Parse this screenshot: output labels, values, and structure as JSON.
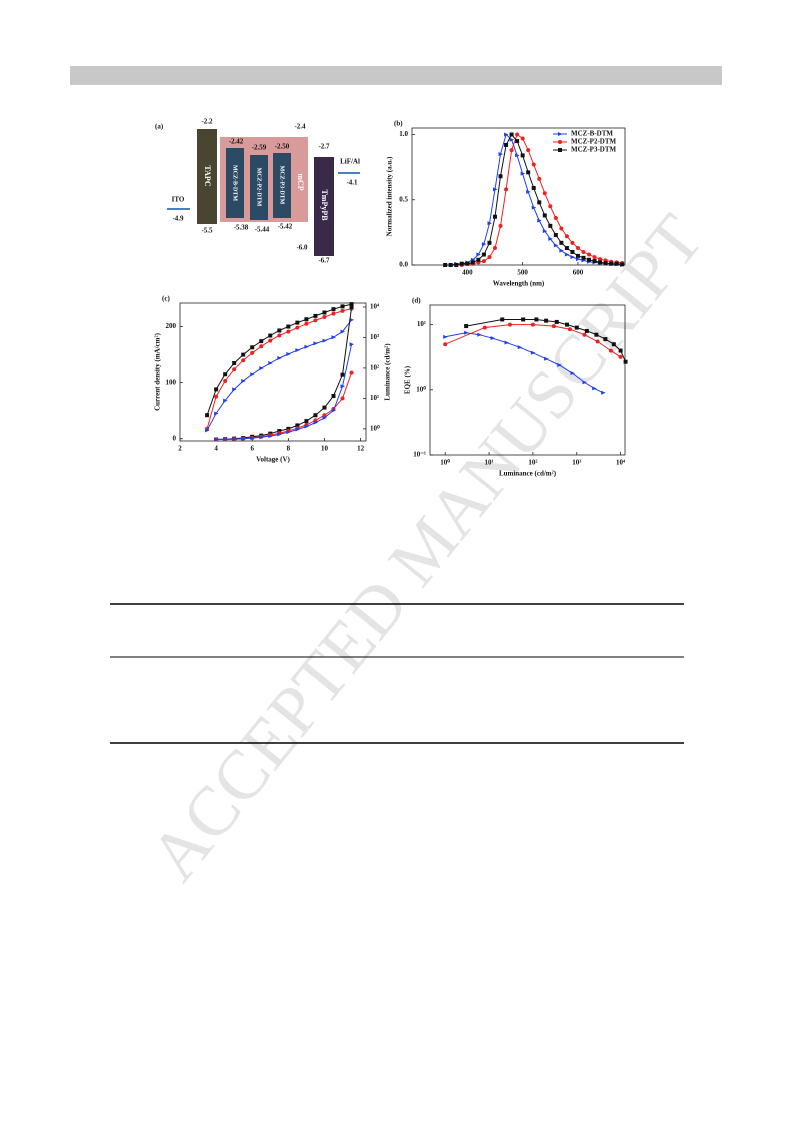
{
  "watermark": "ACCEPTED MANUSCRIPT",
  "energy_diagram": {
    "panel_label": "(a)",
    "layers": [
      {
        "name": "ITO",
        "level": "-4.9"
      },
      {
        "name": "TAPC",
        "lumo": "-2.2",
        "homo": "-5.5"
      },
      {
        "name": "mCP",
        "lumo": "-2.4",
        "homo": "-6.0"
      },
      {
        "name": "MCZ-B-DTM",
        "lumo": "-2.42",
        "homo": "-5.38"
      },
      {
        "name": "MCZ-P2-DTM",
        "lumo": "-2.59",
        "homo": "-5.44"
      },
      {
        "name": "MCZ-P3-DTM",
        "lumo": "-2.50",
        "homo": "-5.42"
      },
      {
        "name": "TmPyPB",
        "lumo": "-2.7",
        "homo": "-6.7"
      },
      {
        "name": "LiF/Al",
        "level": "-4.1"
      }
    ]
  },
  "chart_data": [
    {
      "type": "line",
      "panel_label": "(b)",
      "x_label": "Wavelength (nm)",
      "y_label": "Normalized intensity (a.u.)",
      "x": [
        360,
        370,
        380,
        390,
        400,
        410,
        420,
        430,
        440,
        450,
        460,
        470,
        480,
        490,
        500,
        510,
        520,
        530,
        540,
        550,
        560,
        570,
        580,
        590,
        600,
        610,
        620,
        630,
        640,
        650,
        660,
        670,
        680
      ],
      "xlim": [
        300,
        685
      ],
      "xticks": [
        400,
        500,
        600
      ],
      "ylim": [
        0,
        1.05
      ],
      "yticks": [
        {
          "value": 0,
          "label": "0.0"
        },
        {
          "value": 0.5,
          "label": "0.5"
        },
        {
          "value": 1,
          "label": "1.0"
        }
      ],
      "legend": "upper right",
      "series": [
        {
          "name": "MCZ-B-DTM",
          "color": "#1f3ff0",
          "marker": "triangle",
          "values": [
            0,
            0,
            0.01,
            0.01,
            0.02,
            0.04,
            0.08,
            0.16,
            0.32,
            0.58,
            0.85,
            1.0,
            0.96,
            0.84,
            0.7,
            0.56,
            0.44,
            0.34,
            0.26,
            0.2,
            0.15,
            0.11,
            0.08,
            0.06,
            0.045,
            0.035,
            0.025,
            0.02,
            0.015,
            0.01,
            0.01,
            0.005,
            0
          ]
        },
        {
          "name": "MCZ-P2-DTM",
          "color": "#f02020",
          "marker": "circle",
          "values": [
            0,
            0,
            0,
            0,
            0.01,
            0.01,
            0.02,
            0.03,
            0.06,
            0.13,
            0.3,
            0.58,
            0.88,
            1.0,
            0.97,
            0.88,
            0.77,
            0.66,
            0.55,
            0.45,
            0.36,
            0.28,
            0.22,
            0.17,
            0.13,
            0.1,
            0.08,
            0.06,
            0.045,
            0.035,
            0.025,
            0.02,
            0.015
          ]
        },
        {
          "name": "MCZ-P3-DTM",
          "color": "#111111",
          "marker": "square",
          "values": [
            0,
            0,
            0,
            0.01,
            0.01,
            0.02,
            0.04,
            0.08,
            0.17,
            0.37,
            0.68,
            0.92,
            1.0,
            0.95,
            0.84,
            0.71,
            0.59,
            0.48,
            0.38,
            0.3,
            0.23,
            0.17,
            0.13,
            0.1,
            0.07,
            0.055,
            0.04,
            0.03,
            0.02,
            0.015,
            0.01,
            0.01,
            0.005
          ]
        }
      ]
    },
    {
      "type": "line",
      "panel_label": "(c)",
      "x_label": "Voltage (V)",
      "y_label": "Current density (mA/cm²)",
      "y2_label": "Luminance (cd/m²)",
      "xlim": [
        2,
        12.3
      ],
      "xticks": [
        2,
        4,
        6,
        8,
        10,
        12
      ],
      "ylim": [
        -4,
        242
      ],
      "yticks": [
        0,
        100,
        200
      ],
      "y2lim": [
        0.4,
        13500
      ],
      "y2scale": "log",
      "y2ticks": [
        {
          "value": 1,
          "label": "10⁰"
        },
        {
          "value": 10,
          "label": "10¹"
        },
        {
          "value": 100,
          "label": "10²"
        },
        {
          "value": 1000,
          "label": "10³"
        },
        {
          "value": 10000,
          "label": "10⁴"
        }
      ],
      "series": [
        {
          "color": "#111111",
          "marker": "square",
          "x": [
            3.5,
            4,
            4.5,
            5,
            5.5,
            6,
            6.5,
            7,
            7.5,
            8,
            8.5,
            9,
            9.5,
            10,
            10.5,
            11,
            11.5
          ],
          "values": [
            42,
            88,
            115,
            135,
            150,
            163,
            174,
            184,
            193,
            200,
            207,
            213,
            219,
            225,
            231,
            236,
            240
          ]
        },
        {
          "color": "#f02020",
          "marker": "circle",
          "x": [
            3.5,
            4,
            4.5,
            5,
            5.5,
            6,
            6.5,
            7,
            7.5,
            8,
            8.5,
            9,
            9.5,
            10,
            10.5,
            11,
            11.5
          ],
          "values": [
            18,
            75,
            103,
            124,
            140,
            153,
            165,
            175,
            184,
            191,
            198,
            205,
            211,
            217,
            223,
            228,
            232
          ]
        },
        {
          "color": "#1f3ff0",
          "marker": "triangle",
          "x": [
            3.5,
            4,
            4.5,
            5,
            5.5,
            6,
            6.5,
            7,
            7.5,
            8,
            8.5,
            9,
            9.5,
            10,
            10.5,
            11,
            11.5
          ],
          "values": [
            15,
            45,
            68,
            88,
            103,
            115,
            126,
            135,
            144,
            151,
            158,
            164,
            170,
            175,
            181,
            191,
            212
          ]
        },
        {
          "color": "#111111",
          "marker": "square",
          "axis": "y2",
          "x": [
            4,
            4.5,
            5,
            5.5,
            6,
            6.5,
            7,
            7.5,
            8,
            8.5,
            9,
            9.5,
            10,
            10.5,
            11,
            11.5
          ],
          "values": [
            0.45,
            0.46,
            0.48,
            0.5,
            0.55,
            0.6,
            0.7,
            0.85,
            1.0,
            1.3,
            1.8,
            2.8,
            5,
            12,
            60,
            10000
          ]
        },
        {
          "color": "#f02020",
          "marker": "circle",
          "axis": "y2",
          "x": [
            4,
            4.5,
            5,
            5.5,
            6,
            6.5,
            7,
            7.5,
            8,
            8.5,
            9,
            9.5,
            10,
            10.5,
            11,
            11.5
          ],
          "values": [
            0.45,
            0.45,
            0.46,
            0.48,
            0.5,
            0.55,
            0.62,
            0.72,
            0.85,
            1.05,
            1.35,
            1.9,
            2.8,
            4.5,
            10,
            70
          ]
        },
        {
          "color": "#1f3ff0",
          "marker": "triangle",
          "axis": "y2",
          "x": [
            4,
            4.5,
            5,
            5.5,
            6,
            6.5,
            7,
            7.5,
            8,
            8.5,
            9,
            9.5,
            10,
            10.5,
            11,
            11.5
          ],
          "values": [
            0.45,
            0.45,
            0.46,
            0.47,
            0.5,
            0.53,
            0.58,
            0.66,
            0.78,
            0.95,
            1.2,
            1.6,
            2.3,
            4,
            25,
            600
          ]
        }
      ]
    },
    {
      "type": "line",
      "panel_label": "(d)",
      "x_label": "Luminance (cd/m²)",
      "y_label": "EQE (%)",
      "xscale": "log",
      "yscale": "log",
      "xlim": [
        0.45,
        12600
      ],
      "xticks": [
        {
          "value": 1,
          "label": "10⁰"
        },
        {
          "value": 10,
          "label": "10¹"
        },
        {
          "value": 100,
          "label": "10²"
        },
        {
          "value": 1000,
          "label": "10³"
        },
        {
          "value": 10000,
          "label": "10⁴"
        }
      ],
      "ylim": [
        0.1,
        20
      ],
      "yticks": [
        {
          "value": 0.1,
          "label": "10⁻¹"
        },
        {
          "value": 1,
          "label": "10⁰"
        },
        {
          "value": 10,
          "label": "10¹"
        }
      ],
      "series": [
        {
          "color": "#111111",
          "marker": "square",
          "x": [
            3,
            20,
            60,
            120,
            200,
            350,
            600,
            1000,
            1700,
            2800,
            4500,
            7000,
            10000,
            13000
          ],
          "values": [
            9.5,
            12,
            12,
            12,
            11.5,
            11,
            10,
            9,
            8,
            7,
            6,
            5,
            4,
            2.7
          ]
        },
        {
          "color": "#f02020",
          "marker": "circle",
          "x": [
            1,
            8,
            30,
            100,
            300,
            700,
            1500,
            3000,
            6000,
            10000
          ],
          "values": [
            5,
            9,
            10,
            10,
            9.5,
            8.5,
            7,
            5.5,
            4,
            3.2
          ]
        },
        {
          "color": "#1f3ff0",
          "marker": "triangle",
          "x": [
            1,
            3,
            6,
            12,
            25,
            50,
            100,
            200,
            400,
            800,
            1500,
            2500,
            4000
          ],
          "values": [
            6.5,
            7.5,
            7,
            6.2,
            5.3,
            4.5,
            3.7,
            3,
            2.4,
            1.8,
            1.3,
            1.05,
            0.9
          ]
        }
      ]
    }
  ]
}
